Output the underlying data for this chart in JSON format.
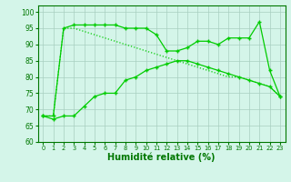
{
  "x": [
    0,
    1,
    2,
    3,
    4,
    5,
    6,
    7,
    8,
    9,
    10,
    11,
    12,
    13,
    14,
    15,
    16,
    17,
    18,
    19,
    20,
    21,
    22,
    23
  ],
  "line_max": [
    68,
    68,
    95,
    96,
    96,
    96,
    96,
    96,
    95,
    95,
    95,
    93,
    88,
    88,
    89,
    91,
    91,
    90,
    92,
    92,
    92,
    97,
    82,
    74
  ],
  "line_min": [
    68,
    67,
    68,
    68,
    71,
    74,
    75,
    75,
    79,
    80,
    82,
    83,
    84,
    85,
    85,
    84,
    83,
    82,
    81,
    80,
    79,
    78,
    77,
    74
  ],
  "line_avg": [
    68,
    68,
    95,
    95,
    94,
    93,
    92,
    91,
    90,
    89,
    88,
    87,
    86,
    85,
    84,
    83,
    82,
    81,
    80,
    80,
    79,
    78,
    77,
    74
  ],
  "line_color": "#00cc00",
  "bg_color": "#d4f5e9",
  "grid_color": "#a8cfc0",
  "xlabel": "Humidité relative (%)",
  "xlabel_color": "#007700",
  "ylim_min": 60,
  "ylim_max": 102,
  "yticks": [
    60,
    65,
    70,
    75,
    80,
    85,
    90,
    95,
    100
  ]
}
